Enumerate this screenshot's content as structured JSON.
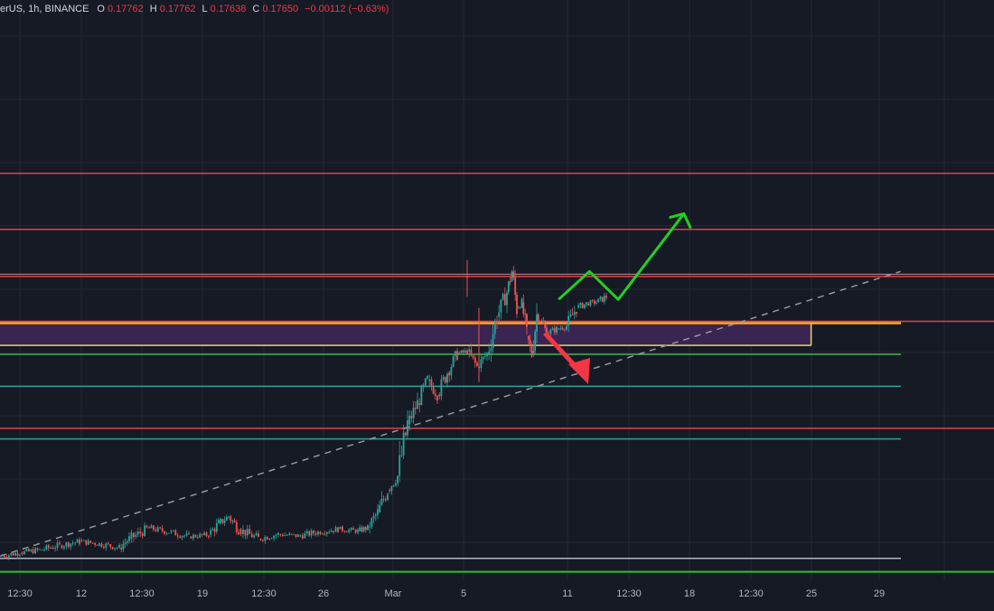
{
  "header": {
    "symbol_fragment": "erUS, 1h, BINANCE",
    "open_label": "O",
    "open_value": "0.17762",
    "high_label": "H",
    "high_value": "0.17762",
    "low_label": "L",
    "low_value": "0.17638",
    "close_label": "C",
    "close_value": "0.17650",
    "change_value": "−0.00112 (−0.63%)"
  },
  "colors": {
    "background": "#161a25",
    "grid": "#232834",
    "resistance": "#e0414c",
    "zone_fill": "#3a2452",
    "zone_border_top": "#f59d26",
    "zone_border_bottom": "#e8d66a",
    "support_green": "#4caf50",
    "support_teal": "#26a69a",
    "support_gray": "#b2b5be",
    "bottom_green": "#2bbf2b",
    "trendline": "#9598a1",
    "arrow_up": "#22d022",
    "arrow_down": "#f23645",
    "candle_up": "#26a69a",
    "candle_down": "#ef5350"
  },
  "chart_data": {
    "type": "candlestick",
    "title": "",
    "timeframe": "1h",
    "exchange": "BINANCE",
    "x_ticks": [
      "12:30",
      "12",
      "12:30",
      "19",
      "12:30",
      "26",
      "Mar",
      "5",
      "11",
      "12:30",
      "18",
      "12:30",
      "25",
      "29"
    ],
    "close_path": [
      [
        0.0,
        0.027
      ],
      [
        0.02,
        0.033
      ],
      [
        0.04,
        0.038
      ],
      [
        0.06,
        0.046
      ],
      [
        0.08,
        0.053
      ],
      [
        0.1,
        0.049
      ],
      [
        0.12,
        0.042
      ],
      [
        0.13,
        0.058
      ],
      [
        0.15,
        0.077
      ],
      [
        0.17,
        0.07
      ],
      [
        0.19,
        0.062
      ],
      [
        0.21,
        0.065
      ],
      [
        0.22,
        0.085
      ],
      [
        0.23,
        0.098
      ],
      [
        0.24,
        0.075
      ],
      [
        0.26,
        0.058
      ],
      [
        0.28,
        0.066
      ],
      [
        0.3,
        0.063
      ],
      [
        0.32,
        0.07
      ],
      [
        0.34,
        0.075
      ],
      [
        0.36,
        0.072
      ],
      [
        0.37,
        0.078
      ],
      [
        0.38,
        0.105
      ],
      [
        0.39,
        0.145
      ],
      [
        0.4,
        0.17
      ],
      [
        0.41,
        0.262
      ],
      [
        0.42,
        0.3
      ],
      [
        0.43,
        0.34
      ],
      [
        0.44,
        0.315
      ],
      [
        0.45,
        0.355
      ],
      [
        0.46,
        0.388
      ],
      [
        0.47,
        0.392
      ],
      [
        0.48,
        0.365
      ],
      [
        0.49,
        0.388
      ],
      [
        0.5,
        0.454
      ],
      [
        0.51,
        0.498
      ],
      [
        0.515,
        0.535
      ],
      [
        0.52,
        0.47
      ],
      [
        0.525,
        0.48
      ],
      [
        0.53,
        0.42
      ],
      [
        0.535,
        0.387
      ],
      [
        0.54,
        0.458
      ],
      [
        0.545,
        0.445
      ],
      [
        0.55,
        0.425
      ],
      [
        0.56,
        0.432
      ],
      [
        0.57,
        0.438
      ],
      [
        0.58,
        0.47
      ],
      [
        0.59,
        0.478
      ],
      [
        0.6,
        0.48
      ],
      [
        0.61,
        0.49
      ]
    ],
    "horizontal_levels": [
      {
        "kind": "resistance",
        "y": 0.71
      },
      {
        "kind": "resistance",
        "y": 0.61
      },
      {
        "kind": "resistance",
        "y": 0.526
      },
      {
        "kind": "resistance",
        "y": 0.446
      },
      {
        "kind": "support",
        "y": 0.387
      },
      {
        "kind": "support",
        "y": 0.33
      },
      {
        "kind": "resistance",
        "y": 0.255
      },
      {
        "kind": "support",
        "y": 0.236
      },
      {
        "kind": "support",
        "y": 0.023
      },
      {
        "kind": "support",
        "y": -0.001
      }
    ],
    "zone": {
      "y_top": 0.443,
      "y_bottom": 0.403,
      "x_end": 0.816
    },
    "trendline": {
      "x0": 0.0,
      "y0": 0.027,
      "x1": 0.906,
      "y1": 0.535
    },
    "projection_up": [
      [
        0.562,
        0.485
      ],
      [
        0.593,
        0.535
      ],
      [
        0.622,
        0.485
      ],
      [
        0.688,
        0.638
      ]
    ],
    "projection_down": [
      [
        0.548,
        0.425
      ],
      [
        0.59,
        0.337
      ]
    ]
  }
}
